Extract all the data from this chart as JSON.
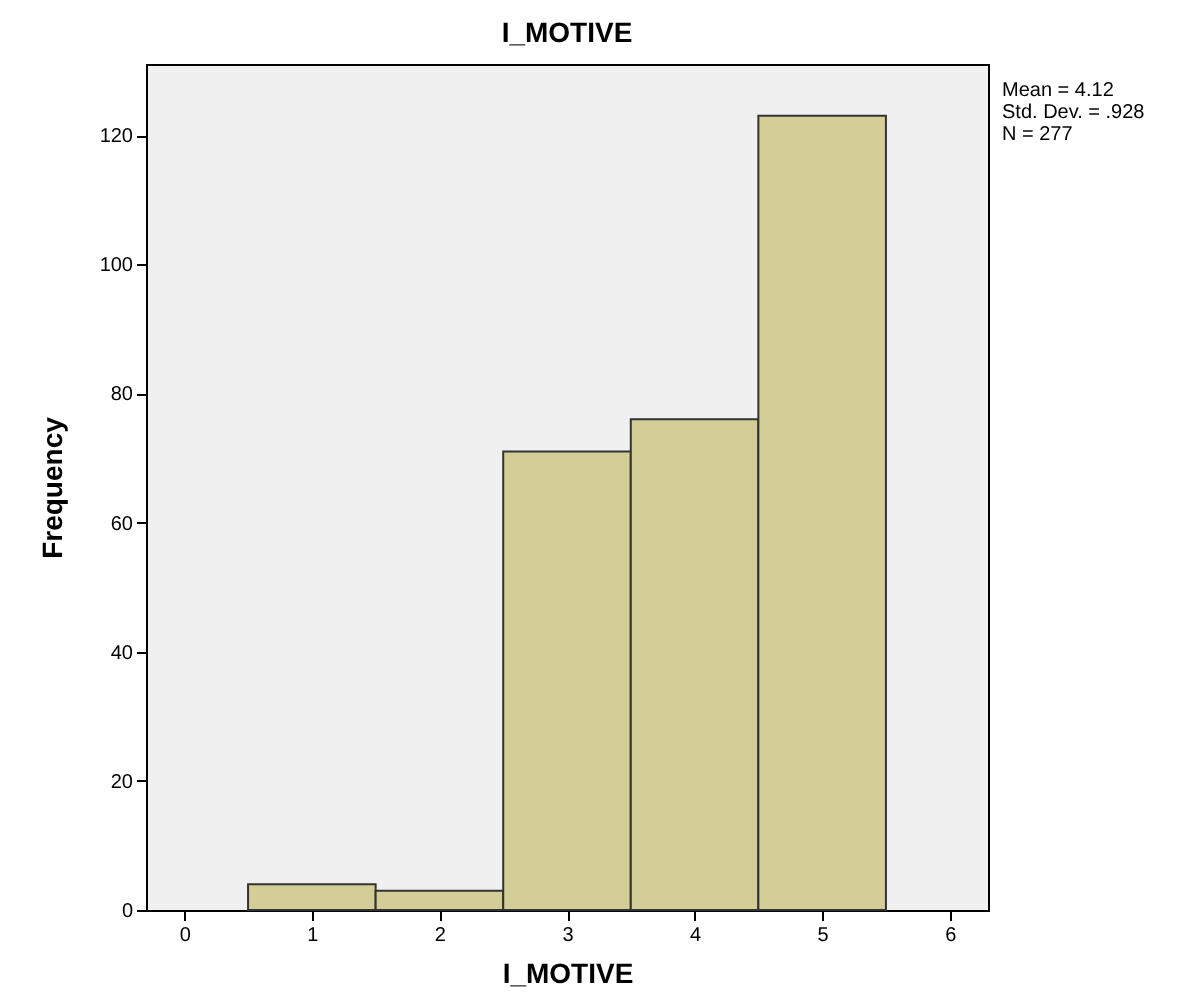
{
  "chart_data": {
    "type": "histogram",
    "title": "I_MOTIVE",
    "xlabel": "I_MOTIVE",
    "ylabel": "Frequency",
    "bins": [
      0.5,
      1.5,
      2.5,
      3.5,
      4.5,
      5.5
    ],
    "values": [
      4,
      3,
      71,
      76,
      123
    ],
    "color": "#d3ce97",
    "xlim": [
      -0.3,
      6.3
    ],
    "xticks": [
      0,
      1,
      2,
      3,
      4,
      5,
      6
    ],
    "ylim": [
      0,
      131
    ],
    "yticks": [
      0,
      20,
      40,
      60,
      80,
      100,
      120
    ],
    "annotations": [
      "Mean = 4.12",
      "Std. Dev. = .928",
      "N = 277"
    ]
  }
}
